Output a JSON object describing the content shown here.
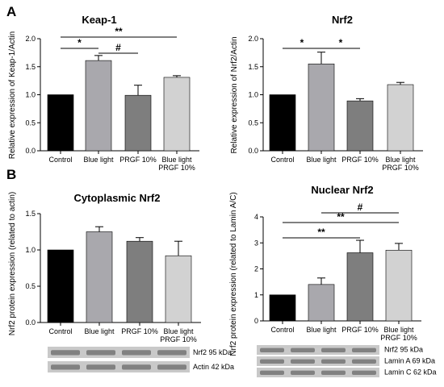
{
  "panels": [
    "A",
    "B"
  ],
  "colors": {
    "control": "#000000",
    "blue_light": "#a9a8ad",
    "prgf": "#7e7e7e",
    "combo": "#d2d2d2"
  },
  "chart_data": [
    {
      "type": "bar",
      "title": "Keap-1",
      "ylabel": "Relative expression of Keap-1/Actin",
      "categories": [
        "Control",
        [
          "Blue light"
        ],
        [
          "PRGF 10%"
        ],
        [
          "Blue light",
          "PRGF 10%"
        ]
      ],
      "values": [
        1.0,
        1.61,
        0.99,
        1.31
      ],
      "errors": [
        0.0,
        0.09,
        0.18,
        0.03
      ],
      "ylim": [
        0,
        2.0
      ],
      "yticks": [
        "0.0",
        "0.5",
        "1.0",
        "1.5",
        "2.0"
      ],
      "significance": [
        {
          "from": 0,
          "to": 3,
          "label": "**"
        },
        {
          "from": 0,
          "to": 1,
          "label": "*"
        },
        {
          "from": 1,
          "to": 2,
          "label": "#"
        }
      ]
    },
    {
      "type": "bar",
      "title": "Nrf2",
      "ylabel": "Relative expression of Nrf2/Actin",
      "categories": [
        "Control",
        [
          "Blue light"
        ],
        [
          "PRGF 10%"
        ],
        [
          "Blue light",
          "PRGF 10%"
        ]
      ],
      "values": [
        1.0,
        1.55,
        0.89,
        1.18
      ],
      "errors": [
        0.0,
        0.21,
        0.04,
        0.04
      ],
      "ylim": [
        0,
        2.0
      ],
      "yticks": [
        "0.0",
        "0.5",
        "1.0",
        "1.5",
        "2.0"
      ],
      "significance": [
        {
          "from": 0,
          "to": 1,
          "label": "*"
        },
        {
          "from": 1,
          "to": 2,
          "label": "*"
        }
      ]
    },
    {
      "type": "bar",
      "title": "Cytoplasmic Nrf2",
      "ylabel": "Nrf2 protein expression (related to actin)",
      "categories": [
        "Control",
        [
          "Blue light"
        ],
        [
          "PRGF 10%"
        ],
        [
          "Blue light",
          "PRGF 10%"
        ]
      ],
      "values": [
        1.0,
        1.25,
        1.12,
        0.92
      ],
      "errors": [
        0.0,
        0.07,
        0.05,
        0.2
      ],
      "ylim": [
        0,
        1.5
      ],
      "yticks": [
        "0.0",
        "0.5",
        "1.0",
        "1.5"
      ],
      "significance": []
    },
    {
      "type": "bar",
      "title": "Nuclear Nrf2",
      "ylabel": "Nrf2 protein expression (related to Lamin A/C)",
      "categories": [
        "Control",
        [
          "Blue light"
        ],
        [
          "PRGF 10%"
        ],
        [
          "Blue light",
          "PRGF 10%"
        ]
      ],
      "values": [
        1.0,
        1.4,
        2.62,
        2.72
      ],
      "errors": [
        0.0,
        0.25,
        0.48,
        0.26
      ],
      "ylim": [
        0,
        4
      ],
      "yticks": [
        "0",
        "1",
        "2",
        "3",
        "4"
      ],
      "significance": [
        {
          "from": 1,
          "to": 3,
          "label": "#"
        },
        {
          "from": 0,
          "to": 3,
          "label": "**"
        },
        {
          "from": 0,
          "to": 2,
          "label": "**"
        }
      ]
    }
  ],
  "blots": {
    "cytoplasmic": [
      "Nrf2 95 kDa",
      "Actin 42 kDa"
    ],
    "nuclear": [
      "Nrf2 95 kDa",
      "Lamin A 69 kDa",
      "Lamin C 62 kDa"
    ]
  }
}
